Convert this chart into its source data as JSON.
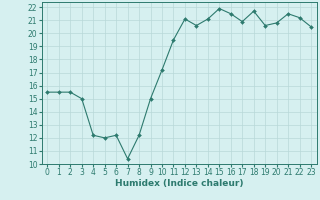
{
  "x": [
    0,
    1,
    2,
    3,
    4,
    5,
    6,
    7,
    8,
    9,
    10,
    11,
    12,
    13,
    14,
    15,
    16,
    17,
    18,
    19,
    20,
    21,
    22,
    23
  ],
  "y": [
    15.5,
    15.5,
    15.5,
    15.0,
    12.2,
    12.0,
    12.2,
    10.4,
    12.2,
    15.0,
    17.2,
    19.5,
    21.1,
    20.6,
    21.1,
    21.9,
    21.5,
    20.9,
    21.7,
    20.6,
    20.8,
    21.5,
    21.2,
    20.5
  ],
  "line_color": "#2d7a6e",
  "marker": "D",
  "marker_size": 2.0,
  "bg_color": "#d6f0f0",
  "grid_color": "#b8d8d8",
  "xlabel": "Humidex (Indice chaleur)",
  "xlim": [
    -0.5,
    23.5
  ],
  "ylim": [
    10,
    22.4
  ],
  "yticks": [
    10,
    11,
    12,
    13,
    14,
    15,
    16,
    17,
    18,
    19,
    20,
    21,
    22
  ],
  "xticks": [
    0,
    1,
    2,
    3,
    4,
    5,
    6,
    7,
    8,
    9,
    10,
    11,
    12,
    13,
    14,
    15,
    16,
    17,
    18,
    19,
    20,
    21,
    22,
    23
  ],
  "tick_fontsize": 5.5,
  "xlabel_fontsize": 6.5
}
